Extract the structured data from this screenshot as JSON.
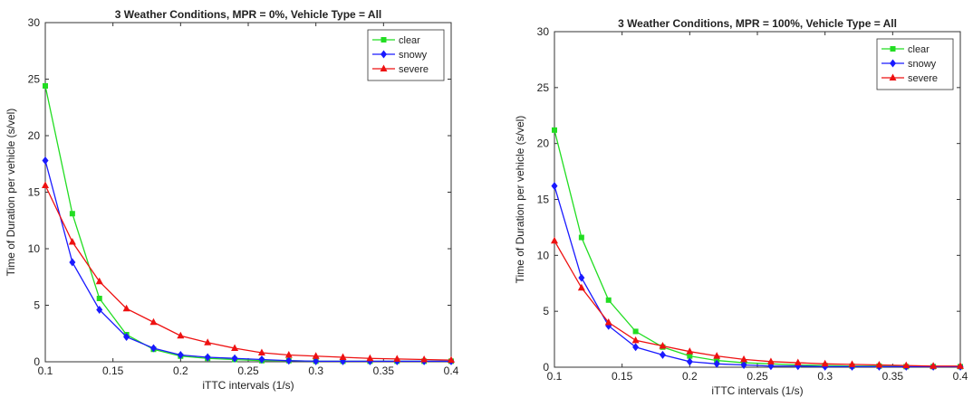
{
  "colors": {
    "clear": "#22dd22",
    "snowy": "#1a1aff",
    "severe": "#ee1111"
  },
  "chart_data": [
    {
      "type": "line",
      "title": "3 Weather Conditions, MPR = 0%, Vehicle Type = All",
      "xlabel": "iTTC intervals (1/s)",
      "ylabel": "Time of Duration per vehicle (s/vel)",
      "xlim": [
        0.1,
        0.4
      ],
      "ylim": [
        0,
        30
      ],
      "xticks": [
        "0.1",
        "0.15",
        "0.2",
        "0.25",
        "0.3",
        "0.35",
        "0.4"
      ],
      "yticks": [
        "0",
        "5",
        "10",
        "15",
        "20",
        "25",
        "30"
      ],
      "legend_position": "top-right",
      "x": [
        0.1,
        0.12,
        0.14,
        0.16,
        0.18,
        0.2,
        0.22,
        0.24,
        0.26,
        0.28,
        0.3,
        0.32,
        0.34,
        0.36,
        0.38,
        0.4
      ],
      "series": [
        {
          "name": "clear",
          "marker": "square",
          "values": [
            24.4,
            13.1,
            5.6,
            2.4,
            1.1,
            0.5,
            0.3,
            0.2,
            0.1,
            0.1,
            0.05,
            0.05,
            0.05,
            0.05,
            0.05,
            0.05
          ]
        },
        {
          "name": "snowy",
          "marker": "diamond",
          "values": [
            17.8,
            8.8,
            4.6,
            2.2,
            1.2,
            0.6,
            0.4,
            0.3,
            0.2,
            0.1,
            0.05,
            0.05,
            0.05,
            0.05,
            0.05,
            0.05
          ]
        },
        {
          "name": "severe",
          "marker": "triangle",
          "values": [
            15.6,
            10.6,
            7.1,
            4.7,
            3.5,
            2.3,
            1.7,
            1.2,
            0.8,
            0.6,
            0.5,
            0.4,
            0.3,
            0.25,
            0.2,
            0.15
          ]
        }
      ]
    },
    {
      "type": "line",
      "title": "3 Weather Conditions, MPR = 100%, Vehicle Type = All",
      "xlabel": "iTTC intervals (1/s)",
      "ylabel": "Time of Duration per vehicle (s/vel)",
      "xlim": [
        0.1,
        0.4
      ],
      "ylim": [
        0,
        30
      ],
      "xticks": [
        "0.1",
        "0.15",
        "0.2",
        "0.25",
        "0.3",
        "0.35",
        "0.4"
      ],
      "yticks": [
        "0",
        "5",
        "10",
        "15",
        "20",
        "25",
        "30"
      ],
      "legend_position": "top-right",
      "x": [
        0.1,
        0.12,
        0.14,
        0.16,
        0.18,
        0.2,
        0.22,
        0.24,
        0.26,
        0.28,
        0.3,
        0.32,
        0.34,
        0.36,
        0.38,
        0.4
      ],
      "series": [
        {
          "name": "clear",
          "marker": "square",
          "values": [
            21.2,
            11.6,
            6.0,
            3.2,
            1.8,
            1.0,
            0.6,
            0.4,
            0.3,
            0.2,
            0.15,
            0.1,
            0.1,
            0.05,
            0.05,
            0.05
          ]
        },
        {
          "name": "snowy",
          "marker": "diamond",
          "values": [
            16.2,
            8.0,
            3.7,
            1.8,
            1.1,
            0.5,
            0.3,
            0.2,
            0.1,
            0.1,
            0.05,
            0.05,
            0.05,
            0.05,
            0.05,
            0.05
          ]
        },
        {
          "name": "severe",
          "marker": "triangle",
          "values": [
            11.3,
            7.1,
            4.0,
            2.4,
            1.9,
            1.4,
            1.0,
            0.7,
            0.5,
            0.4,
            0.3,
            0.25,
            0.2,
            0.15,
            0.1,
            0.1
          ]
        }
      ]
    }
  ]
}
